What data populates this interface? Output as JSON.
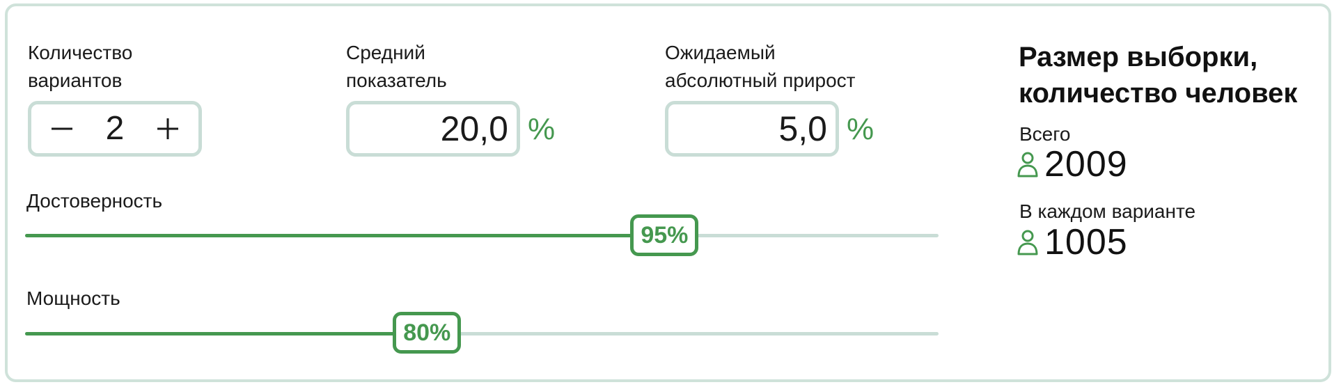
{
  "variants": {
    "label": "Количество\nвариантов",
    "value": "2",
    "minus": "−",
    "plus": "+"
  },
  "average": {
    "label": "Средний\nпоказатель",
    "value": "20,0",
    "unit": "%"
  },
  "uplift": {
    "label": "Ожидаемый\nабсолютный прирост",
    "value": "5,0",
    "unit": "%"
  },
  "confidence": {
    "label": "Достоверность",
    "value": "95%",
    "level": 0.7
  },
  "power": {
    "label": "Мощность",
    "value": "80%",
    "level": 0.44
  },
  "results": {
    "title": "Размер выборки,\nколичество человек",
    "total_label": "Всего",
    "total_value": "2009",
    "per_variant_label": "В каждом варианте",
    "per_variant_value": "1005",
    "icon": "person-icon"
  },
  "colors": {
    "accent": "#45984f",
    "border": "#c9ddd6",
    "card_border": "#cfe2da",
    "text": "#141414"
  }
}
